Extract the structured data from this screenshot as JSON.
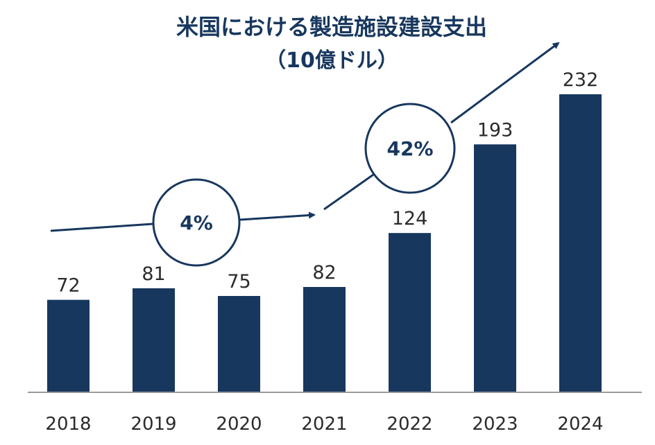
{
  "chart_data": {
    "type": "bar",
    "title": "米国における製造施設建設支出",
    "subtitle": "（10億ドル）",
    "categories": [
      "2018",
      "2019",
      "2020",
      "2021",
      "2022",
      "2023",
      "2024"
    ],
    "values": [
      72,
      81,
      75,
      82,
      124,
      193,
      232
    ],
    "xlabel": "",
    "ylabel": "",
    "ylim": [
      0,
      240
    ],
    "grid": false,
    "legend": "none",
    "annotations": [
      {
        "label": "4%",
        "from_category": "2018",
        "to_category": "2021"
      },
      {
        "label": "42%",
        "from_category": "2021",
        "to_category": "2024"
      }
    ],
    "colors": {
      "bar": "#17375e",
      "text": "#2b2b2b",
      "title": "#17375e",
      "axis": "#999999"
    }
  }
}
